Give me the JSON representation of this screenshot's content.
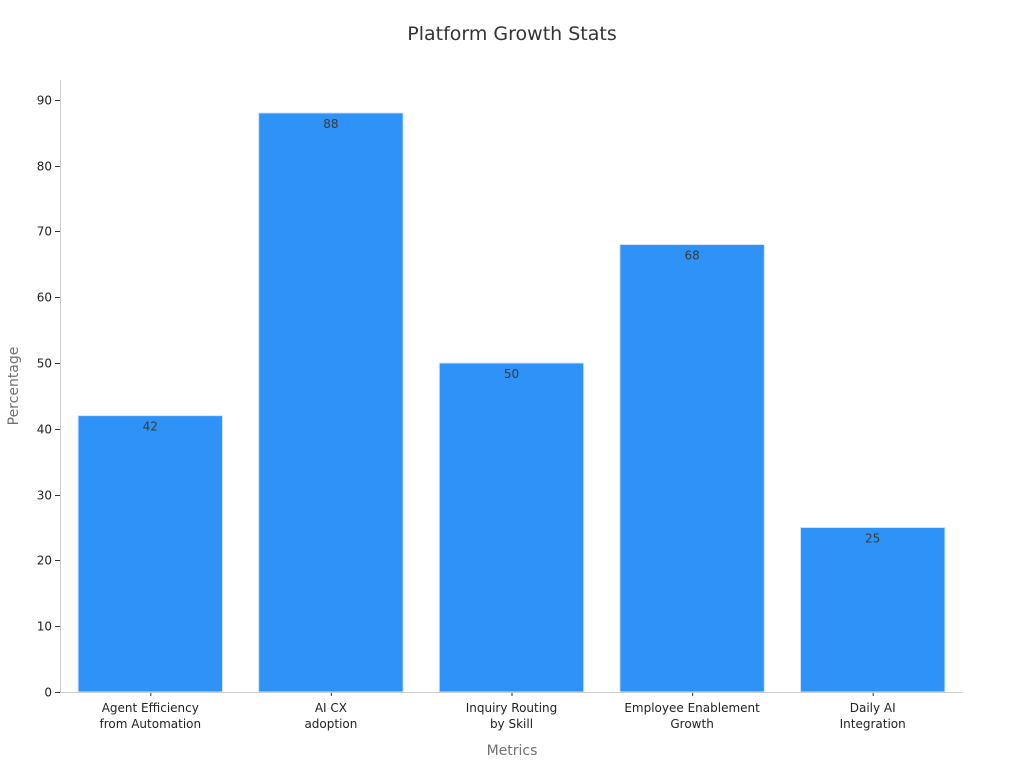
{
  "chart_data": {
    "type": "bar",
    "title": "Platform Growth Stats",
    "xlabel": "Metrics",
    "ylabel": "Percentage",
    "categories": [
      [
        "Agent Efficiency",
        "from Automation"
      ],
      [
        "AI CX",
        "adoption"
      ],
      [
        "Inquiry Routing",
        "by Skill"
      ],
      [
        "Employee Enablement",
        "Growth"
      ],
      [
        "Daily AI",
        "Integration"
      ]
    ],
    "values": [
      42,
      88,
      50,
      68,
      25
    ],
    "ylim": [
      0,
      93
    ],
    "yticks": [
      0,
      10,
      20,
      30,
      40,
      50,
      60,
      70,
      80,
      90
    ],
    "grid": false,
    "legend": "none",
    "bar_color": "#2e92f6"
  }
}
